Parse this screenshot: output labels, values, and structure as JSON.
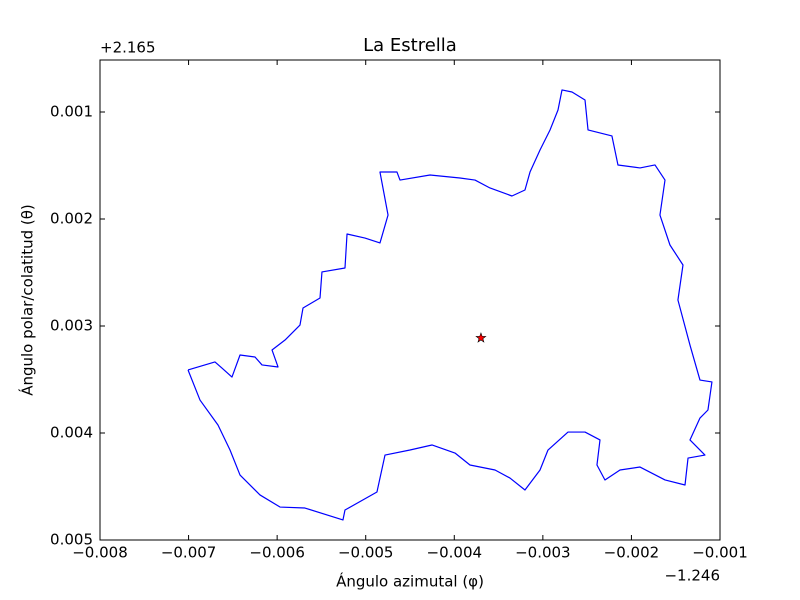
{
  "chart_data": {
    "type": "line",
    "title": "La Estrella",
    "xlabel": "Ángulo azimutal (φ)",
    "ylabel": "Ángulo polar/colatitud (θ)",
    "x_offset_label": "−1.246",
    "y_offset_label": "+2.165",
    "xlim": [
      -0.008,
      -0.001
    ],
    "ylim": [
      0.005,
      0.000514
    ],
    "xticks": [
      {
        "value": -0.008,
        "label": "−0.008"
      },
      {
        "value": -0.007,
        "label": "−0.007"
      },
      {
        "value": -0.006,
        "label": "−0.006"
      },
      {
        "value": -0.005,
        "label": "−0.005"
      },
      {
        "value": -0.004,
        "label": "−0.004"
      },
      {
        "value": -0.003,
        "label": "−0.003"
      },
      {
        "value": -0.002,
        "label": "−0.002"
      },
      {
        "value": -0.001,
        "label": "−0.001"
      }
    ],
    "yticks": [
      0.001,
      0.002,
      0.003,
      0.004,
      0.005
    ],
    "series": [
      {
        "color": "#0000ff",
        "marker": "none",
        "x": [
          -0.007006,
          -0.006702,
          -0.006623,
          -0.00651,
          -0.006419,
          -0.00625,
          -0.006171,
          -0.00599,
          -0.006058,
          -0.005911,
          -0.005742,
          -0.005708,
          -0.005516,
          -0.005494,
          -0.005234,
          -0.005211,
          -0.005008,
          -0.004839,
          -0.004748,
          -0.004839,
          -0.004647,
          -0.004613,
          -0.004274,
          -0.003936,
          -0.003766,
          -0.003597,
          -0.003349,
          -0.003202,
          -0.003145,
          -0.003032,
          -0.002919,
          -0.002829,
          -0.002784,
          -0.002671,
          -0.002524,
          -0.00249,
          -0.00222,
          -0.002152,
          -0.001903,
          -0.001734,
          -0.001621,
          -0.001678,
          -0.001565,
          -0.001418,
          -0.001475,
          -0.001339,
          -0.001226,
          -0.001091,
          -0.001136,
          -0.001226,
          -0.001339,
          -0.00117,
          -0.001361,
          -0.001395,
          -0.001621,
          -0.001903,
          -0.002129,
          -0.002299,
          -0.002389,
          -0.002355,
          -0.002524,
          -0.002716,
          -0.002942,
          -0.003032,
          -0.003202,
          -0.003371,
          -0.00354,
          -0.003823,
          -0.003992,
          -0.004252,
          -0.0045,
          -0.004782,
          -0.004873,
          -0.005234,
          -0.005257,
          -0.005686,
          -0.005968,
          -0.006194,
          -0.006419,
          -0.006532,
          -0.006668,
          -0.006871,
          -0.007006
        ],
        "values": [
          0.003411,
          0.003336,
          0.003393,
          0.003477,
          0.003271,
          0.00329,
          0.003364,
          0.003383,
          0.003224,
          0.003131,
          0.002991,
          0.002832,
          0.002738,
          0.002495,
          0.002458,
          0.00214,
          0.002178,
          0.002224,
          0.001963,
          0.001561,
          0.001561,
          0.001636,
          0.001589,
          0.001617,
          0.001636,
          0.00171,
          0.001785,
          0.001729,
          0.001561,
          0.001355,
          0.001168,
          0.000981,
          0.000794,
          0.000813,
          0.000888,
          0.001168,
          0.001224,
          0.001495,
          0.001523,
          0.001495,
          0.001636,
          0.001963,
          0.002243,
          0.00243,
          0.002757,
          0.003178,
          0.003505,
          0.003523,
          0.003785,
          0.00386,
          0.004065,
          0.004206,
          0.004234,
          0.004486,
          0.004439,
          0.004318,
          0.004346,
          0.004439,
          0.004299,
          0.004065,
          0.003991,
          0.003991,
          0.004159,
          0.004346,
          0.004533,
          0.004421,
          0.004346,
          0.004299,
          0.004187,
          0.004112,
          0.004159,
          0.004206,
          0.004551,
          0.00472,
          0.004813,
          0.004701,
          0.004692,
          0.004579,
          0.004393,
          0.004159,
          0.003925,
          0.003692,
          0.003411
        ]
      },
      {
        "color": "#ff0000",
        "marker": "star",
        "x": [
          -0.003699
        ],
        "values": [
          0.003112
        ]
      }
    ]
  }
}
